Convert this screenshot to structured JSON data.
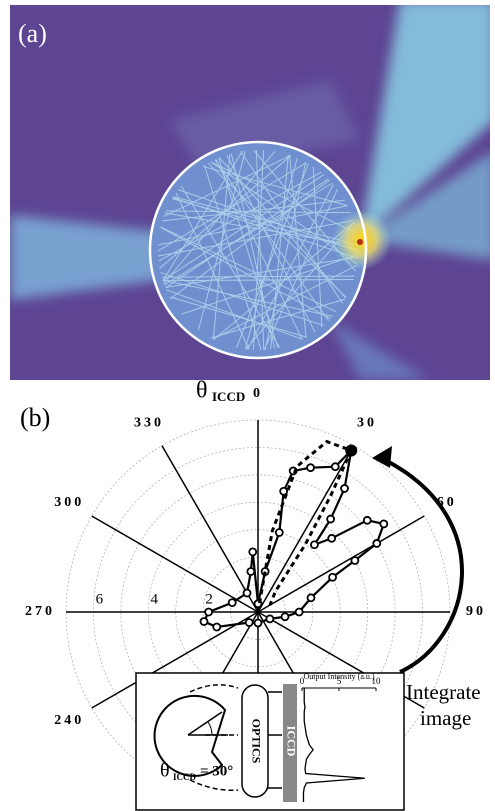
{
  "panel_labels": [
    "(a)",
    "(b)"
  ],
  "chart_data": {
    "type": "polar",
    "angle_label": "θ",
    "angle_label_sub": "ICCD",
    "theta_ticks": [
      0,
      30,
      60,
      90,
      240,
      270,
      300,
      330
    ],
    "angle_grid_step": 30,
    "rlim": [
      0,
      7
    ],
    "rticks": [
      2,
      4,
      6
    ],
    "rgrid": [
      1,
      2,
      3,
      4,
      5,
      6,
      7
    ],
    "series": [
      {
        "style": "markers",
        "color": "#000000",
        "x": [
          0,
          10,
          15,
          12,
          14,
          20,
          28,
          30,
          35,
          38,
          40,
          45,
          50,
          55,
          60,
          62,
          65,
          75,
          90,
          100,
          120,
          180,
          220,
          250,
          260,
          270,
          290,
          330,
          350,
          355,
          0
        ],
        "values": [
          0.3,
          1.5,
          3.0,
          4.5,
          5.3,
          5.6,
          6.0,
          6.8,
          5.5,
          4.3,
          3.2,
          3.8,
          5.2,
          5.6,
          5.0,
          4.0,
          3.0,
          2.0,
          1.5,
          1.0,
          0.5,
          0.4,
          0.5,
          1.6,
          2.0,
          1.8,
          1.0,
          0.8,
          1.5,
          2.2,
          0.3
        ]
      },
      {
        "style": "dashed",
        "color": "#000000",
        "x": [
          0,
          10,
          15,
          22,
          30,
          32,
          35,
          40,
          60
        ],
        "values": [
          0,
          3.0,
          5.5,
          6.7,
          6.8,
          5.0,
          3.0,
          1.0,
          0.5
        ]
      }
    ],
    "highlight": {
      "theta": 30,
      "r": 6.8
    },
    "annotation": [
      "Integrate",
      "image"
    ],
    "inset": {
      "theta_symbol": "θ",
      "theta_sub": "ICCD",
      "theta_value": "= 30°",
      "optics": "OPTICS",
      "detector": "ICCD",
      "xlabel": "Output Intensity (a.u.)",
      "xlim": [
        0,
        10
      ],
      "xticks": [
        0,
        5,
        10
      ],
      "values": [
        0.3,
        0.3,
        0.3,
        0.3,
        0.4,
        0.3,
        0.3,
        0.3,
        0.4,
        0.5,
        0.6,
        0.8,
        1.0,
        1.5,
        1.0,
        0.6,
        0.5,
        0.4,
        0.5,
        8.5,
        0.6,
        0.3,
        0.2,
        0.2,
        0.2
      ]
    }
  }
}
